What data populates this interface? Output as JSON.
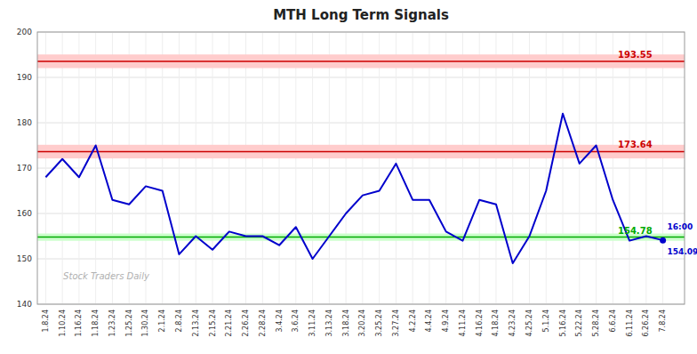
{
  "chart_data": {
    "type": "line",
    "title": "MTH Long Term Signals",
    "categories": [
      "1.8.24",
      "1.10.24",
      "1.16.24",
      "1.18.24",
      "1.23.24",
      "1.25.24",
      "1.30.24",
      "2.1.24",
      "2.8.24",
      "2.13.24",
      "2.15.24",
      "2.21.24",
      "2.26.24",
      "2.28.24",
      "3.4.24",
      "3.6.24",
      "3.11.24",
      "3.13.24",
      "3.18.24",
      "3.20.24",
      "3.25.24",
      "3.27.24",
      "4.2.24",
      "4.4.24",
      "4.9.24",
      "4.11.24",
      "4.16.24",
      "4.18.24",
      "4.23.24",
      "4.25.24",
      "5.1.24",
      "5.16.24",
      "5.22.24",
      "5.28.24",
      "6.6.24",
      "6.11.24",
      "6.26.24",
      "7.8.24"
    ],
    "values": [
      168,
      172,
      168,
      175,
      163,
      162,
      166,
      165,
      151,
      155,
      152,
      156,
      155,
      155,
      153,
      157,
      150,
      155,
      160,
      164,
      165,
      171,
      163,
      163,
      156,
      154,
      163,
      162,
      149,
      155,
      165,
      182,
      171,
      175,
      163,
      154,
      155,
      154.09
    ],
    "color": "#0000cc",
    "ylim": [
      140,
      200
    ],
    "yticks": [
      140,
      150,
      160,
      170,
      180,
      190,
      200
    ],
    "grid": true,
    "reference_lines": [
      {
        "value": 193.55,
        "label": "193.55",
        "color": "#cc0000",
        "band_color": "#ffcccc"
      },
      {
        "value": 173.64,
        "label": "173.64",
        "color": "#cc0000",
        "band_color": "#ffcccc"
      },
      {
        "value": 154.78,
        "label": "154.78",
        "color": "#00aa00",
        "band_color": "#ccffcc"
      }
    ],
    "last_point": {
      "time": "16:00",
      "value": 154.09
    },
    "watermark": "Stock Traders Daily"
  }
}
